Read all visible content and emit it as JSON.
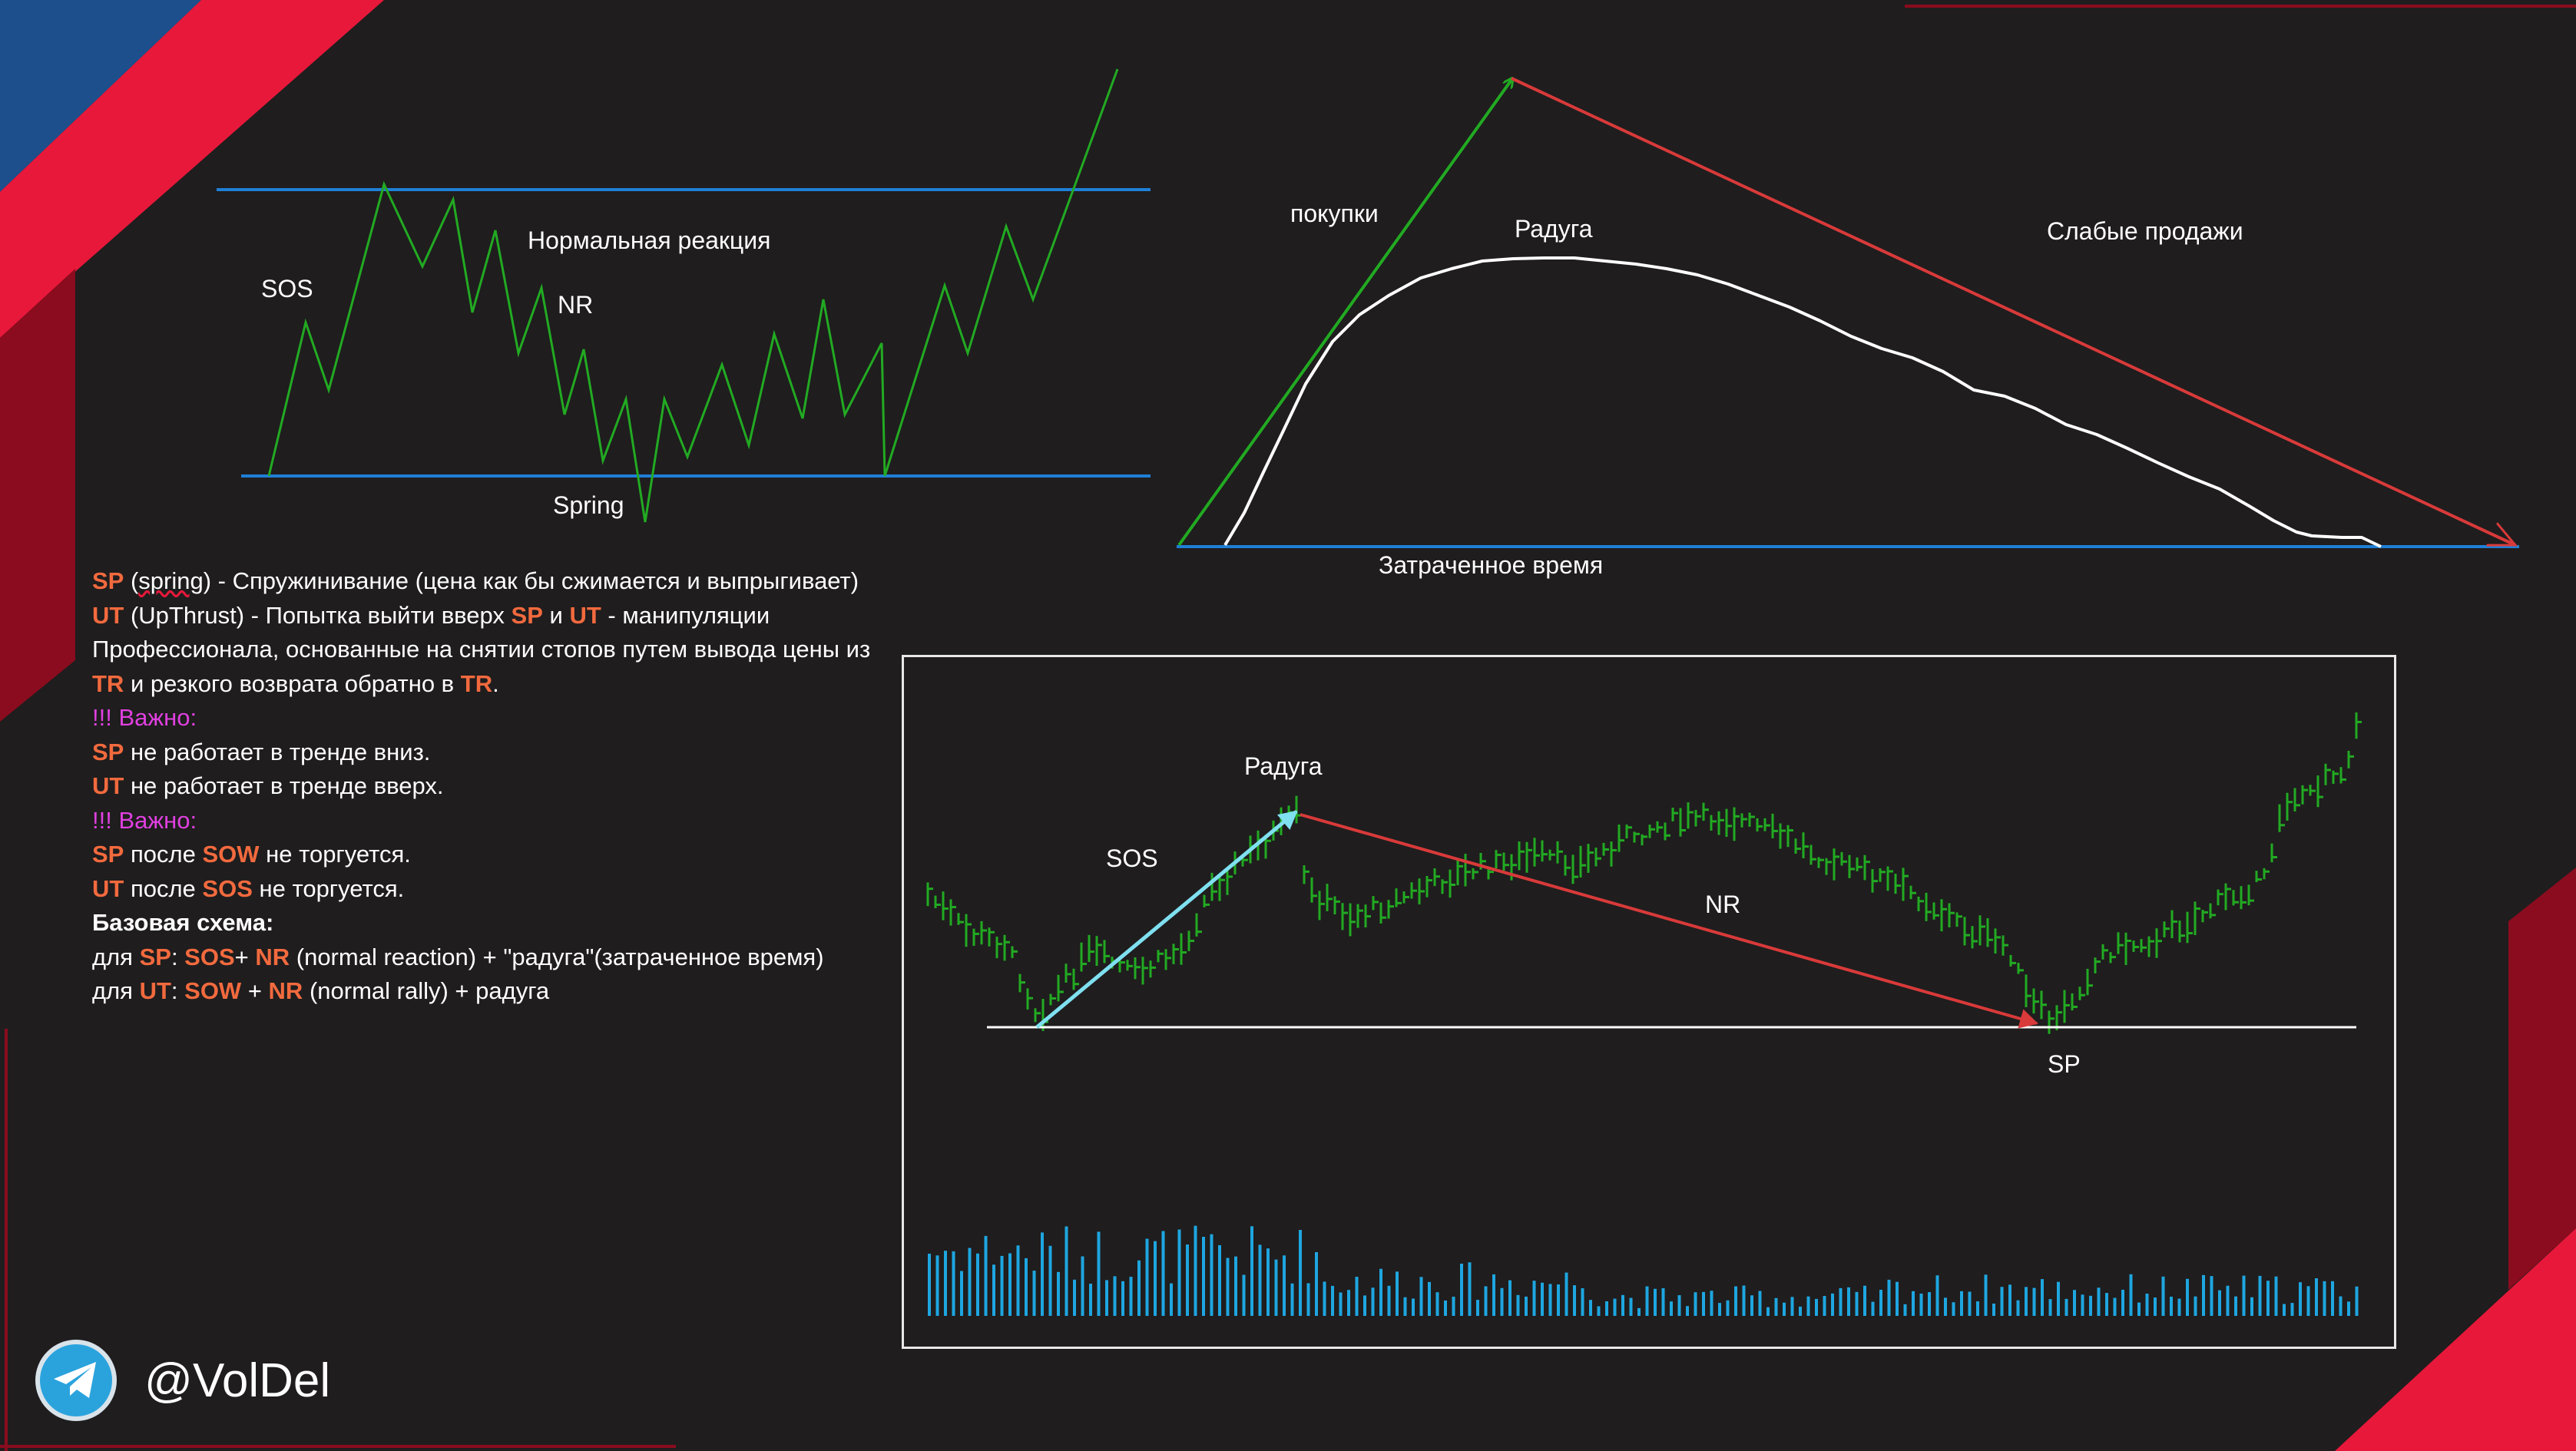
{
  "top_left_diagram": {
    "labels": {
      "sos": "SOS",
      "normal_reaction": "Нормальная реакция",
      "nr": "NR",
      "spring": "Spring"
    },
    "colors": {
      "range_lines": "#1f7fd6",
      "price": "#22aa22"
    }
  },
  "top_right_diagram": {
    "labels": {
      "buys": "покупки",
      "rainbow": "Радуга",
      "weak_sales": "Слабые продажи",
      "time_spent": "Затраченное время"
    },
    "colors": {
      "buy_arrow": "#22aa22",
      "sell_arrow": "#d93a3a",
      "rainbow_curve": "#ffffff",
      "baseline": "#1f7fd6"
    }
  },
  "bottom_chart": {
    "labels": {
      "rainbow": "Радуга",
      "sos": "SOS",
      "nr": "NR",
      "sp": "SP"
    },
    "colors": {
      "bars": "#22aa22",
      "volume": "#1ea6e0",
      "up_arrow": "#7fe0f0",
      "down_arrow": "#d93a3a",
      "support": "#ffffff",
      "frame": "#e8e8e8"
    }
  },
  "notes": {
    "line1": {
      "k1": "SP",
      "t1": " (",
      "t2": "spring",
      "t3": ") - Спружинивание (цена как бы сжимается и выпрыгивает)"
    },
    "line2": {
      "k1": "UT",
      "t1": " (UpThrust) - Попытка выйти вверх ",
      "k2": "SP",
      "t2": " и ",
      "k3": "UT",
      "t3": " - манипуляции Профессионала, основанные на снятии стопов путем вывода цены из ",
      "k4": "TR",
      "t4": " и резкого возврата обратно в ",
      "k5": "TR",
      "t5": "."
    },
    "important1": "!!! Важно:",
    "line3": {
      "k1": "SP",
      "t1": " не работает в тренде вниз."
    },
    "line4": {
      "k1": "UT",
      "t1": " не работает в тренде вверх."
    },
    "important2": "!!! Важно:",
    "line5": {
      "k1": "SP",
      "t1": " после ",
      "k2": "SOW",
      "t2": " не торгуется."
    },
    "line6": {
      "k1": "UT",
      "t1": " после ",
      "k2": "SOS",
      "t2": " не торгуется."
    },
    "base_scheme": "Базовая схема:",
    "line7": {
      "t1": "для ",
      "k1": "SP",
      "t2": ": ",
      "k2": "SOS",
      "t3": "+ ",
      "k3": "NR",
      "t4": " (normal reaction) + \"радуга\"(затраченное время)"
    },
    "line8": {
      "t1": "для ",
      "k1": "UT",
      "t2": ": ",
      "k2": "SOW",
      "t3": " + ",
      "k3": "NR",
      "t4": " (normal rally) + радуга"
    }
  },
  "brand": {
    "handle": "@VolDel",
    "icon": "telegram-icon"
  },
  "decor_colors": {
    "red": "#e8183a",
    "blue": "#1c4f8c",
    "dark_red": "#8a0c1e"
  }
}
